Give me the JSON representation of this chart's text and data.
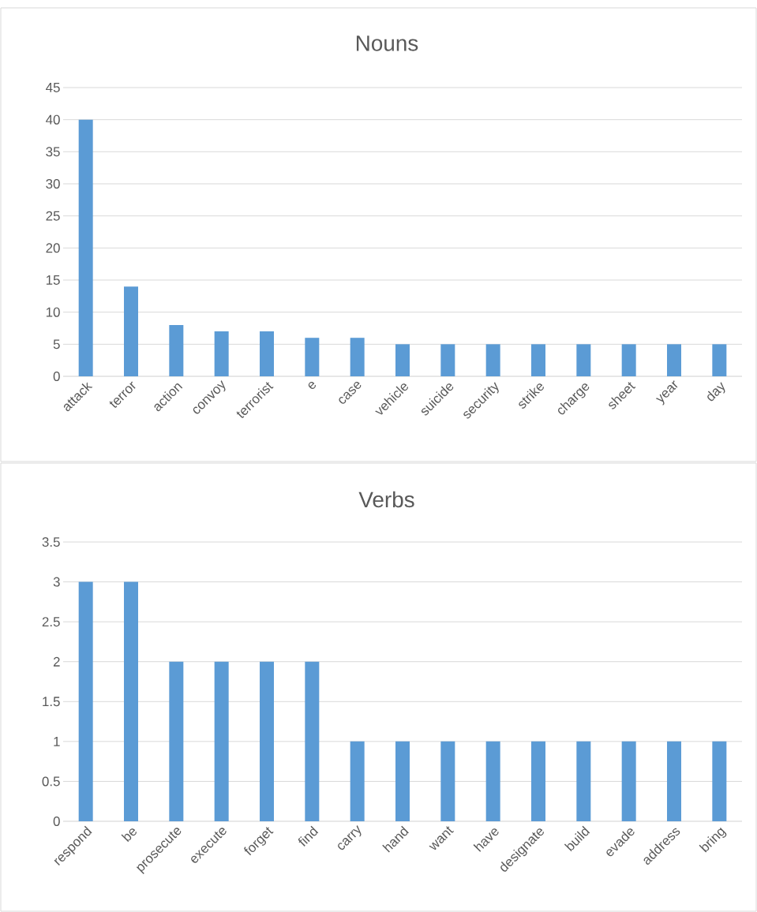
{
  "chart_data": [
    {
      "type": "bar",
      "title": "Nouns",
      "categories": [
        "attack",
        "terror",
        "action",
        "convoy",
        "terrorist",
        "e",
        "case",
        "vehicle",
        "suicide",
        "security",
        "strike",
        "charge",
        "sheet",
        "year",
        "day"
      ],
      "values": [
        40,
        14,
        8,
        7,
        7,
        6,
        6,
        5,
        5,
        5,
        5,
        5,
        5,
        5,
        5
      ],
      "color": "#5b9bd5",
      "ylim": [
        0,
        45
      ],
      "yticks": [
        0,
        5,
        10,
        15,
        20,
        25,
        30,
        35,
        40,
        45
      ],
      "grid": "y"
    },
    {
      "type": "bar",
      "title": "Verbs",
      "categories": [
        "respond",
        "be",
        "prosecute",
        "execute",
        "forget",
        "find",
        "carry",
        "hand",
        "want",
        "have",
        "designate",
        "build",
        "evade",
        "address",
        "bring"
      ],
      "values": [
        3,
        3,
        2,
        2,
        2,
        2,
        1,
        1,
        1,
        1,
        1,
        1,
        1,
        1,
        1
      ],
      "color": "#5b9bd5",
      "ylim": [
        0,
        3.5
      ],
      "yticks": [
        0,
        0.5,
        1,
        1.5,
        2,
        2.5,
        3,
        3.5
      ],
      "grid": "y"
    }
  ]
}
